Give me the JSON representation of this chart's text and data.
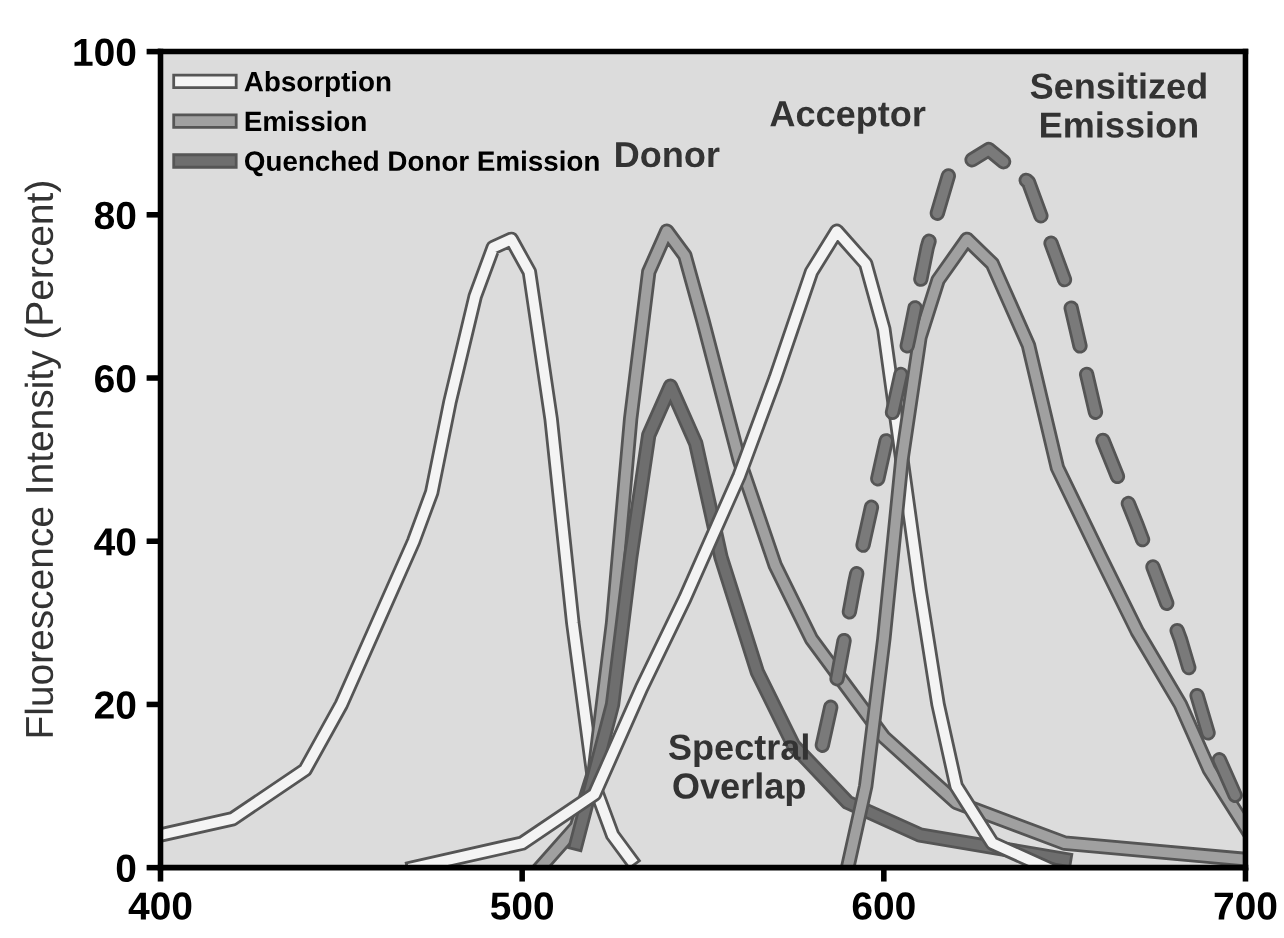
{
  "chart_data": {
    "type": "line",
    "ylabel": "Fluorescence Intensity (Percent)",
    "xlim": [
      400,
      700
    ],
    "xticks": [
      400,
      500,
      600,
      700
    ],
    "ylim": [
      0,
      100
    ],
    "yticks": [
      0,
      20,
      40,
      60,
      80,
      100
    ],
    "legend": "top left",
    "grid": false,
    "line_style": "solid",
    "annotations": [
      "Donor",
      "Acceptor",
      "Sensitized Emission",
      "Spectral Overlap"
    ],
    "series": [
      {
        "name": "Absorption",
        "color": "#f4f4f4",
        "x": [
          400,
          420,
          440,
          450,
          460,
          470,
          475,
          480,
          487,
          492,
          497,
          502,
          508,
          514,
          520,
          525,
          530
        ],
        "values": [
          4,
          6,
          12,
          20,
          30,
          40,
          46,
          57,
          70,
          76,
          77,
          73,
          55,
          30,
          10,
          4,
          1
        ]
      },
      {
        "name": "Emission",
        "color": "#a0a0a0",
        "x": [
          505,
          515,
          520,
          525,
          530,
          535,
          540,
          545,
          550,
          560,
          570,
          580,
          590,
          600,
          620,
          650,
          700
        ],
        "values": [
          0,
          5,
          12,
          30,
          55,
          73,
          78,
          75,
          67,
          50,
          37,
          28,
          22,
          16,
          8,
          3,
          1
        ]
      },
      {
        "name": "Quenched Donor Emission",
        "color": "#6e6e6e",
        "x": [
          515,
          525,
          530,
          535,
          541,
          548,
          555,
          565,
          575,
          590,
          610,
          650
        ],
        "values": [
          3,
          20,
          38,
          53,
          59,
          52,
          38,
          24,
          15,
          8,
          4,
          1
        ]
      },
      {
        "color": "#f4f4f4",
        "x": [
          470,
          500,
          520,
          533,
          545,
          560,
          570,
          580,
          587,
          595,
          600,
          605,
          610,
          615,
          620,
          630,
          645
        ],
        "values": [
          0,
          3,
          9,
          22,
          33,
          48,
          60,
          73,
          78,
          74,
          66,
          50,
          34,
          20,
          10,
          3,
          0
        ]
      },
      {
        "color": "#a0a0a0",
        "x": [
          590,
          595,
          600,
          605,
          610,
          615,
          623,
          630,
          640,
          648,
          660,
          670,
          682,
          690,
          700
        ],
        "values": [
          0,
          10,
          28,
          50,
          65,
          72,
          77,
          74,
          64,
          49,
          38,
          29,
          20,
          12,
          5
        ]
      },
      {
        "color": "#7a7a7a",
        "line_style": "dashed",
        "x": [
          583,
          587,
          592,
          597,
          602,
          607,
          612,
          618,
          629,
          640,
          650,
          660,
          670,
          682,
          690,
          700
        ],
        "values": [
          15,
          23,
          35,
          45,
          55,
          65,
          76,
          85,
          88,
          84,
          72,
          53,
          42,
          28,
          16,
          6
        ]
      }
    ]
  }
}
